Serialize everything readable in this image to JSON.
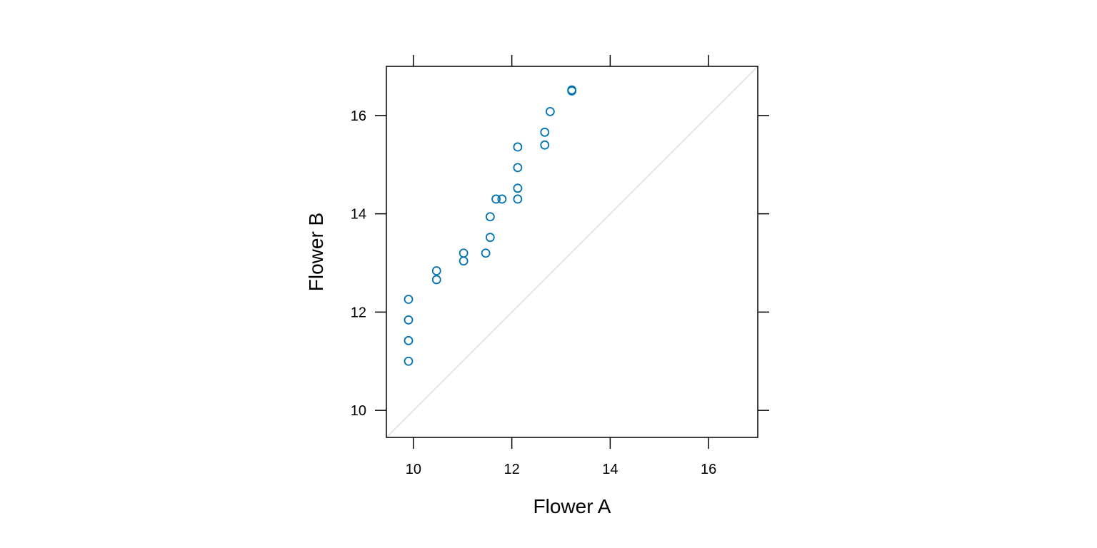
{
  "chart_data": {
    "type": "scatter",
    "xlabel": "Flower A",
    "ylabel": "Flower B",
    "xlim": [
      9.45,
      17.0
    ],
    "ylim": [
      9.45,
      17.0
    ],
    "ticks": [
      10,
      12,
      14,
      16
    ],
    "tick_labels": [
      "10",
      "12",
      "14",
      "16"
    ],
    "reference_line": "y = x",
    "point_color": "#0072B2",
    "reference_line_color": "#dcdcdc",
    "grid": false,
    "points": [
      {
        "x": 9.9,
        "y": 11.0
      },
      {
        "x": 9.9,
        "y": 11.42
      },
      {
        "x": 9.9,
        "y": 11.84
      },
      {
        "x": 9.9,
        "y": 12.26
      },
      {
        "x": 10.47,
        "y": 12.66
      },
      {
        "x": 10.47,
        "y": 12.84
      },
      {
        "x": 11.02,
        "y": 13.04
      },
      {
        "x": 11.02,
        "y": 13.2
      },
      {
        "x": 11.47,
        "y": 13.2
      },
      {
        "x": 11.56,
        "y": 13.52
      },
      {
        "x": 11.56,
        "y": 13.94
      },
      {
        "x": 11.68,
        "y": 14.3
      },
      {
        "x": 11.8,
        "y": 14.3
      },
      {
        "x": 12.12,
        "y": 14.3
      },
      {
        "x": 12.12,
        "y": 14.52
      },
      {
        "x": 12.12,
        "y": 14.94
      },
      {
        "x": 12.12,
        "y": 15.36
      },
      {
        "x": 12.67,
        "y": 15.4
      },
      {
        "x": 12.67,
        "y": 15.66
      },
      {
        "x": 12.78,
        "y": 16.08
      },
      {
        "x": 13.22,
        "y": 16.5
      },
      {
        "x": 13.22,
        "y": 16.52
      }
    ]
  }
}
